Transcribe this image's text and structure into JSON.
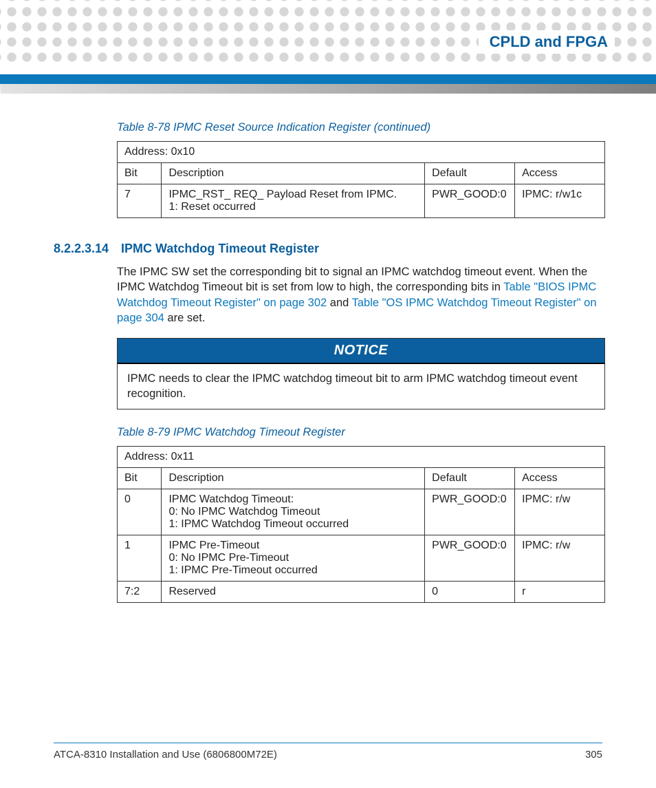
{
  "colors": {
    "brand_blue": "#0b5f9e",
    "bar_blue": "#0b78bc",
    "dot_grey": "#d7d7d7",
    "border": "#333333",
    "text": "#222222"
  },
  "header": {
    "chapter_title": "CPLD and FPGA"
  },
  "table78": {
    "caption": "Table 8-78 IPMC Reset Source Indication Register (continued)",
    "address": "Address: 0x10",
    "columns": {
      "bit": "Bit",
      "desc": "Description",
      "def": "Default",
      "acc": "Access"
    },
    "row": {
      "bit": "7",
      "desc_l1": "IPMC_RST_ REQ_ Payload Reset from IPMC.",
      "desc_l2": "1: Reset occurred",
      "def": "PWR_GOOD:0",
      "acc": "IPMC: r/w1c"
    }
  },
  "section": {
    "num": "8.2.2.3.14",
    "title": "IPMC Watchdog Timeout Register",
    "para_pre": "The IPMC SW set the corresponding bit to signal an IPMC watchdog timeout event. When the IPMC Watchdog Timeout bit is set from low to high, the corresponding bits in ",
    "link1": "Table \"BIOS IPMC Watchdog Timeout Register\" on page 302",
    "mid": " and ",
    "link2": "Table \"OS IPMC Watchdog Timeout Register\" on page 304",
    "post": " are set."
  },
  "notice": {
    "label": "NOTICE",
    "body": "IPMC needs to clear the IPMC watchdog timeout bit to arm IPMC watchdog timeout event recognition."
  },
  "table79": {
    "caption": "Table 8-79 IPMC Watchdog Timeout Register",
    "address": "Address: 0x11",
    "columns": {
      "bit": "Bit",
      "desc": "Description",
      "def": "Default",
      "acc": "Access"
    },
    "rows": [
      {
        "bit": "0",
        "desc_l1": "IPMC Watchdog Timeout:",
        "desc_l2": "0: No IPMC Watchdog Timeout",
        "desc_l3": "1: IPMC Watchdog Timeout occurred",
        "def": "PWR_GOOD:0",
        "acc": "IPMC: r/w"
      },
      {
        "bit": "1",
        "desc_l1": "IPMC Pre-Timeout",
        "desc_l2": "0: No IPMC Pre-Timeout",
        "desc_l3": "1: IPMC Pre-Timeout occurred",
        "def": "PWR_GOOD:0",
        "acc": "IPMC: r/w"
      },
      {
        "bit": "7:2",
        "desc_l1": "Reserved",
        "desc_l2": "",
        "desc_l3": "",
        "def": "0",
        "acc": "r"
      }
    ]
  },
  "footer": {
    "doc": "ATCA-8310 Installation and Use (6806800M72E)",
    "page": "305"
  }
}
